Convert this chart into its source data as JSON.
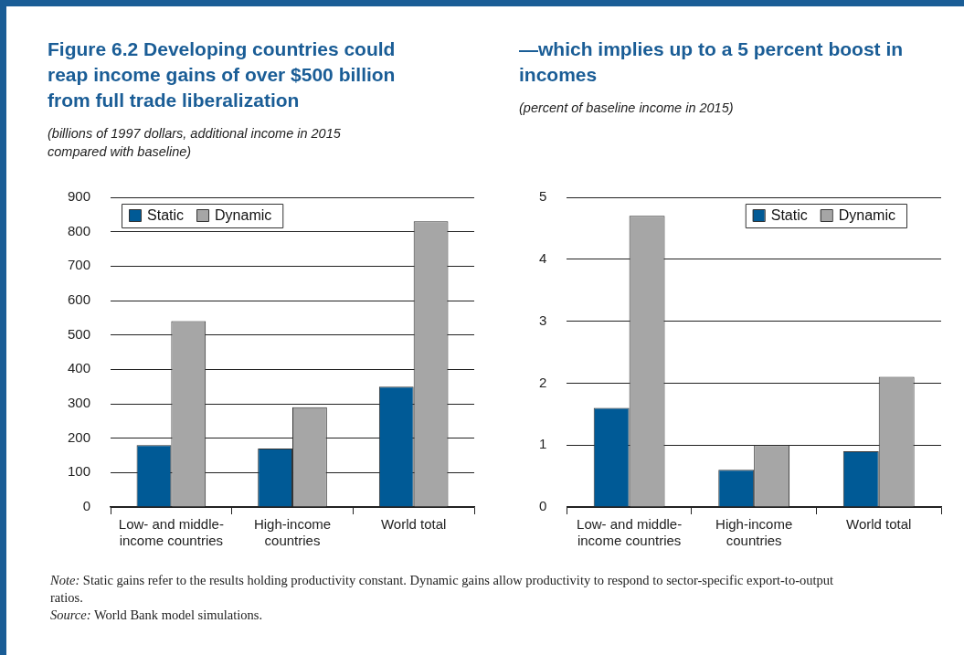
{
  "chart_data": [
    {
      "type": "bar",
      "title": "Figure 6.2  Developing countries could reap income gains of over $500 billion from full trade liberalization",
      "subtitle": "(billions of 1997 dollars, additional income in 2015 compared with baseline)",
      "categories": [
        "Low- and middle-income countries",
        "High-income countries",
        "World total"
      ],
      "series": [
        {
          "name": "Static",
          "color": "#005a96",
          "values": [
            180,
            170,
            350
          ]
        },
        {
          "name": "Dynamic",
          "color": "#a6a6a6",
          "values": [
            540,
            290,
            830
          ]
        }
      ],
      "ylim": [
        0,
        900
      ],
      "yticks": [
        0,
        100,
        200,
        300,
        400,
        500,
        600,
        700,
        800,
        900
      ],
      "grid": "y",
      "legend": "top left",
      "annotations": [
        "Note: Static gains refer to the results holding productivity constant. Dynamic gains allow productivity to respond to sector-specific export-to-output ratios.",
        "Source: World Bank model simulations."
      ]
    },
    {
      "type": "bar",
      "title": "—which implies up to a 5 percent boost in incomes",
      "subtitle": "(percent of baseline income in 2015)",
      "categories": [
        "Low- and middle-income countries",
        "High-income countries",
        "World total"
      ],
      "series": [
        {
          "name": "Static",
          "color": "#005a96",
          "values": [
            1.6,
            0.6,
            0.9
          ]
        },
        {
          "name": "Dynamic",
          "color": "#a6a6a6",
          "values": [
            4.7,
            1.0,
            2.1
          ]
        }
      ],
      "ylim": [
        0,
        5
      ],
      "yticks": [
        0,
        1,
        2,
        3,
        4,
        5
      ],
      "grid": "y",
      "legend": "top right"
    }
  ]
}
